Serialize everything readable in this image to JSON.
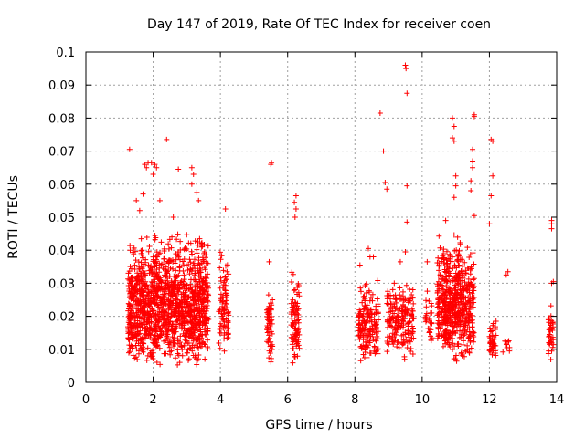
{
  "chart_data": {
    "type": "scatter",
    "title": "Day 147 of 2019, Rate Of TEC Index for receiver coen",
    "xlabel": "GPS time / hours",
    "ylabel": "ROTI / TECUs",
    "xlim": [
      0,
      14
    ],
    "ylim": [
      0,
      0.1
    ],
    "xticks": [
      "0",
      "2",
      "4",
      "6",
      "8",
      "10",
      "12",
      "14"
    ],
    "yticks": [
      "0",
      "0.01",
      "0.02",
      "0.03",
      "0.04",
      "0.05",
      "0.06",
      "0.07",
      "0.08",
      "0.09",
      "0.1"
    ],
    "grid": true,
    "marker": "plus",
    "color": "#ff0000",
    "clusters": [
      {
        "x_range": [
          1.25,
          3.65
        ],
        "y_range": [
          0.004,
          0.045
        ],
        "count": 1400
      },
      {
        "x_range": [
          3.95,
          4.25
        ],
        "y_range": [
          0.007,
          0.042
        ],
        "count": 90
      },
      {
        "x_range": [
          5.38,
          5.55
        ],
        "y_range": [
          0.004,
          0.028
        ],
        "count": 60
      },
      {
        "x_range": [
          6.1,
          6.35
        ],
        "y_range": [
          0.004,
          0.034
        ],
        "count": 90
      },
      {
        "x_range": [
          8.1,
          8.7
        ],
        "y_range": [
          0.005,
          0.031
        ],
        "count": 180
      },
      {
        "x_range": [
          8.95,
          9.75
        ],
        "y_range": [
          0.006,
          0.033
        ],
        "count": 200
      },
      {
        "x_range": [
          10.1,
          10.3
        ],
        "y_range": [
          0.01,
          0.03
        ],
        "count": 30
      },
      {
        "x_range": [
          10.45,
          11.55
        ],
        "y_range": [
          0.005,
          0.045
        ],
        "count": 600
      },
      {
        "x_range": [
          12.0,
          12.2
        ],
        "y_range": [
          0.007,
          0.02
        ],
        "count": 40
      },
      {
        "x_range": [
          12.4,
          12.6
        ],
        "y_range": [
          0.009,
          0.013
        ],
        "count": 10
      },
      {
        "x_range": [
          13.75,
          13.9
        ],
        "y_range": [
          0.006,
          0.024
        ],
        "count": 40
      }
    ],
    "points": [
      [
        1.3,
        0.0705
      ],
      [
        1.75,
        0.066
      ],
      [
        1.8,
        0.065
      ],
      [
        1.85,
        0.0665
      ],
      [
        1.95,
        0.0665
      ],
      [
        2.05,
        0.066
      ],
      [
        2.0,
        0.063
      ],
      [
        2.1,
        0.065
      ],
      [
        2.4,
        0.0735
      ],
      [
        2.75,
        0.0645
      ],
      [
        3.15,
        0.065
      ],
      [
        3.2,
        0.063
      ],
      [
        3.15,
        0.06
      ],
      [
        3.3,
        0.0575
      ],
      [
        3.35,
        0.055
      ],
      [
        1.5,
        0.055
      ],
      [
        1.6,
        0.052
      ],
      [
        1.7,
        0.057
      ],
      [
        2.2,
        0.055
      ],
      [
        2.6,
        0.05
      ],
      [
        4.15,
        0.0525
      ],
      [
        5.5,
        0.066
      ],
      [
        5.52,
        0.0665
      ],
      [
        5.45,
        0.0365
      ],
      [
        6.25,
        0.0565
      ],
      [
        6.2,
        0.0545
      ],
      [
        6.25,
        0.0525
      ],
      [
        6.22,
        0.05
      ],
      [
        8.15,
        0.0355
      ],
      [
        8.4,
        0.0405
      ],
      [
        8.45,
        0.038
      ],
      [
        8.55,
        0.038
      ],
      [
        8.75,
        0.0815
      ],
      [
        8.85,
        0.07
      ],
      [
        8.9,
        0.0605
      ],
      [
        8.95,
        0.0585
      ],
      [
        9.5,
        0.096
      ],
      [
        9.52,
        0.095
      ],
      [
        9.55,
        0.0875
      ],
      [
        9.55,
        0.0595
      ],
      [
        9.55,
        0.0485
      ],
      [
        9.5,
        0.0395
      ],
      [
        9.35,
        0.0365
      ],
      [
        10.15,
        0.0365
      ],
      [
        10.9,
        0.08
      ],
      [
        10.95,
        0.0775
      ],
      [
        10.9,
        0.074
      ],
      [
        10.95,
        0.073
      ],
      [
        11.55,
        0.081
      ],
      [
        11.55,
        0.0805
      ],
      [
        11.5,
        0.0705
      ],
      [
        11.5,
        0.067
      ],
      [
        11.5,
        0.065
      ],
      [
        11.45,
        0.061
      ],
      [
        11.45,
        0.058
      ],
      [
        11.0,
        0.0625
      ],
      [
        11.0,
        0.0595
      ],
      [
        10.95,
        0.056
      ],
      [
        10.7,
        0.049
      ],
      [
        11.55,
        0.0505
      ],
      [
        12.05,
        0.0735
      ],
      [
        12.1,
        0.073
      ],
      [
        12.1,
        0.0625
      ],
      [
        12.05,
        0.0565
      ],
      [
        12.0,
        0.048
      ],
      [
        12.5,
        0.0325
      ],
      [
        12.55,
        0.0335
      ],
      [
        13.85,
        0.049
      ],
      [
        13.85,
        0.048
      ],
      [
        13.85,
        0.0465
      ],
      [
        13.9,
        0.0305
      ],
      [
        13.85,
        0.03
      ]
    ]
  }
}
